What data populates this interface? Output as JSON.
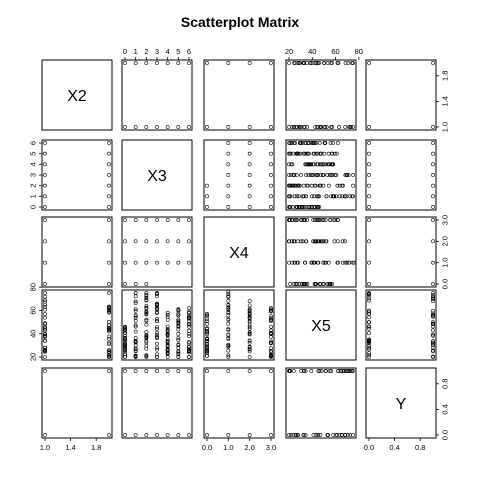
{
  "chart_data": {
    "type": "scatter",
    "title": "Scatterplot Matrix",
    "variables": [
      "X2",
      "X3",
      "X4",
      "X5",
      "Y"
    ],
    "ranges": {
      "X2": [
        1.0,
        2.0
      ],
      "X3": [
        0,
        6
      ],
      "X4": [
        0,
        3
      ],
      "X5": [
        20,
        75
      ],
      "Y": [
        0,
        1
      ]
    },
    "tick_labels": {
      "X2": [
        "1.0",
        "1.4",
        "1.8"
      ],
      "X3": [
        "0",
        "1",
        "2",
        "3",
        "4",
        "5",
        "6"
      ],
      "X4": [
        "0.0",
        "1.0",
        "2.0",
        "3.0"
      ],
      "X5": [
        "20",
        "40",
        "60",
        "80"
      ],
      "Y": [
        "0.0",
        "0.4",
        "0.8"
      ]
    },
    "tick_values": {
      "X2": [
        1.0,
        1.4,
        1.8
      ],
      "X3": [
        0,
        1,
        2,
        3,
        4,
        5,
        6
      ],
      "X4": [
        0,
        1,
        2,
        3
      ],
      "X5": [
        20,
        40,
        60,
        80
      ],
      "Y": [
        0,
        0.4,
        0.8
      ]
    },
    "distinct_values": {
      "X2": [
        1,
        2
      ],
      "X3": [
        0,
        1,
        2,
        3,
        4,
        5,
        6
      ],
      "X4": [
        0,
        1,
        2,
        3
      ],
      "Y": [
        0,
        1
      ]
    },
    "x5_extent_by_X3": [
      [
        20,
        46
      ],
      [
        20,
        75
      ],
      [
        20,
        75
      ],
      [
        20,
        75
      ],
      [
        20,
        58
      ],
      [
        20,
        61
      ],
      [
        20,
        62
      ]
    ],
    "x5_extent_by_X4": [
      [
        21,
        57
      ],
      [
        20,
        76
      ],
      [
        20,
        68
      ],
      [
        20,
        62
      ]
    ],
    "x3x4_pairs_present": [
      [
        0,
        0
      ],
      [
        1,
        0
      ],
      [
        2,
        0
      ],
      [
        0,
        1
      ],
      [
        1,
        1
      ],
      [
        2,
        1
      ],
      [
        3,
        1
      ],
      [
        4,
        1
      ],
      [
        5,
        1
      ],
      [
        6,
        1
      ],
      [
        0,
        2
      ],
      [
        1,
        2
      ],
      [
        2,
        2
      ],
      [
        3,
        2
      ],
      [
        4,
        2
      ],
      [
        5,
        2
      ],
      [
        6,
        2
      ],
      [
        0,
        3
      ],
      [
        1,
        3
      ],
      [
        2,
        3
      ],
      [
        3,
        3
      ],
      [
        4,
        3
      ],
      [
        5,
        3
      ],
      [
        6,
        3
      ]
    ],
    "grid": false,
    "legend": "none"
  }
}
